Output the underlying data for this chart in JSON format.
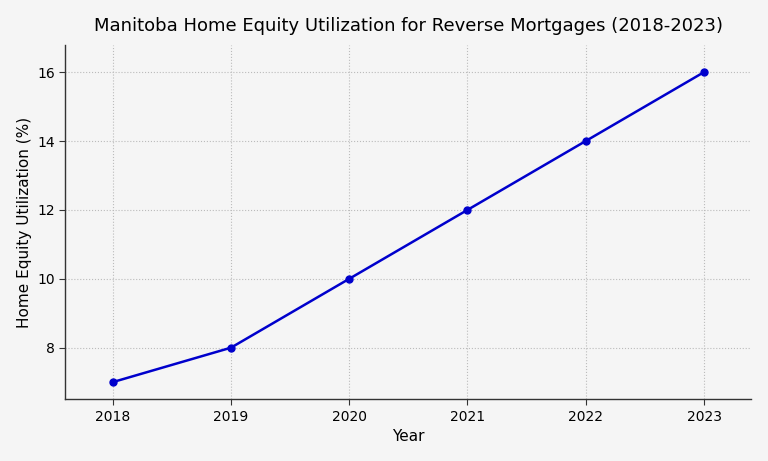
{
  "title": "Manitoba Home Equity Utilization for Reverse Mortgages (2018-2023)",
  "xlabel": "Year",
  "ylabel": "Home Equity Utilization (%)",
  "x": [
    2018,
    2019,
    2020,
    2021,
    2022,
    2023
  ],
  "y": [
    7,
    8,
    10,
    12,
    14,
    16
  ],
  "line_color": "#0000CC",
  "marker": "o",
  "marker_color": "#0000CC",
  "marker_size": 5,
  "line_width": 1.8,
  "ylim": [
    6.5,
    16.8
  ],
  "xlim": [
    2017.6,
    2023.4
  ],
  "yticks": [
    8,
    10,
    12,
    14,
    16
  ],
  "xticks": [
    2018,
    2019,
    2020,
    2021,
    2022,
    2023
  ],
  "grid_color": "#bbbbbb",
  "grid_style": ":",
  "background_color": "#f5f5f5",
  "plot_bg_color": "#f5f5f5",
  "title_fontsize": 13,
  "label_fontsize": 11,
  "tick_fontsize": 10,
  "spine_color": "#333333"
}
